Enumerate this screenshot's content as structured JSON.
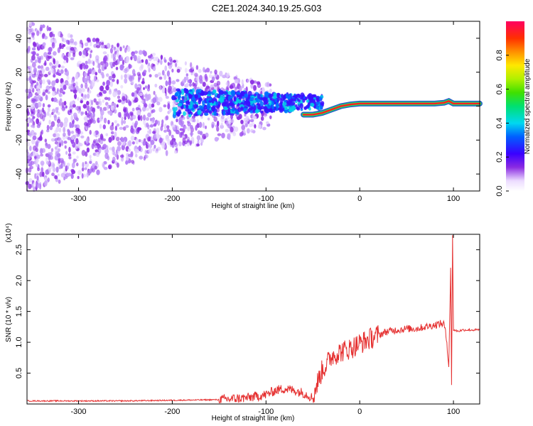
{
  "page_title": "C2E1.2024.340.19.25.G03",
  "chart_data": [
    {
      "type": "heatmap",
      "xlabel": "Height of straight line (km)",
      "ylabel": "Frequency (Hz)",
      "xlim": [
        -355,
        128
      ],
      "ylim": [
        -50,
        50
      ],
      "xticks": [
        -300,
        -200,
        -100,
        0,
        100
      ],
      "yticks": [
        -40,
        -20,
        0,
        20,
        40
      ],
      "xtick_labels": [
        "-300",
        "-200",
        "-100",
        "0",
        "100"
      ],
      "ytick_labels": [
        "-40",
        "-20",
        "0",
        "20",
        "40"
      ],
      "colorbar": {
        "label": "Normalized spectral amplitude",
        "range": [
          0,
          1
        ],
        "ticks": [
          0.0,
          0.2,
          0.4,
          0.6,
          0.8
        ],
        "tick_labels": [
          "0.0",
          "0.2",
          "0.4",
          "0.6",
          "0.8"
        ],
        "colormap": "rainbow-white-purple-red"
      },
      "signal_track": {
        "x": [
          -60,
          -50,
          -40,
          -30,
          -20,
          -10,
          0,
          20,
          40,
          60,
          80,
          90,
          95,
          100,
          110,
          128
        ],
        "y": [
          -5,
          -5,
          -4,
          -2,
          0,
          1,
          1.5,
          1.5,
          1.5,
          1.5,
          1.5,
          2,
          3,
          1.5,
          1.5,
          1.5
        ]
      },
      "grid": false
    },
    {
      "type": "line",
      "xlabel": "Height of straight line (km)",
      "ylabel": "SNR (10 * v/v)",
      "scale_note": "(x10⁴)",
      "xlim": [
        -355,
        128
      ],
      "ylim": [
        0,
        2.75
      ],
      "xticks": [
        -300,
        -200,
        -100,
        0,
        100
      ],
      "yticks": [
        0.5,
        1.0,
        1.5,
        2.0,
        2.5
      ],
      "xtick_labels": [
        "-300",
        "-200",
        "-100",
        "0",
        "100"
      ],
      "ytick_labels": [
        "0.5",
        "1.0",
        "1.5",
        "2.0",
        "2.5"
      ],
      "color": "#e53030",
      "series": [
        {
          "x": [
            -355,
            -300,
            -250,
            -200,
            -150,
            -120,
            -100,
            -90,
            -80,
            -70,
            -60,
            -50,
            -45,
            -40,
            -35,
            -30,
            -20,
            -10,
            0,
            10,
            20,
            30,
            40,
            50,
            60,
            70,
            80,
            85,
            90,
            93,
            95,
            97,
            98,
            99,
            100,
            105,
            110,
            120,
            128
          ],
          "y": [
            0.05,
            0.05,
            0.05,
            0.06,
            0.07,
            0.1,
            0.15,
            0.22,
            0.25,
            0.22,
            0.18,
            0.1,
            0.35,
            0.55,
            0.65,
            0.78,
            0.85,
            0.9,
            0.98,
            1.05,
            1.12,
            1.18,
            1.2,
            1.22,
            1.22,
            1.25,
            1.28,
            1.3,
            1.3,
            1.0,
            0.6,
            2.2,
            0.3,
            2.75,
            1.2,
            1.18,
            1.2,
            1.2,
            1.2
          ]
        }
      ],
      "grid": false
    }
  ]
}
